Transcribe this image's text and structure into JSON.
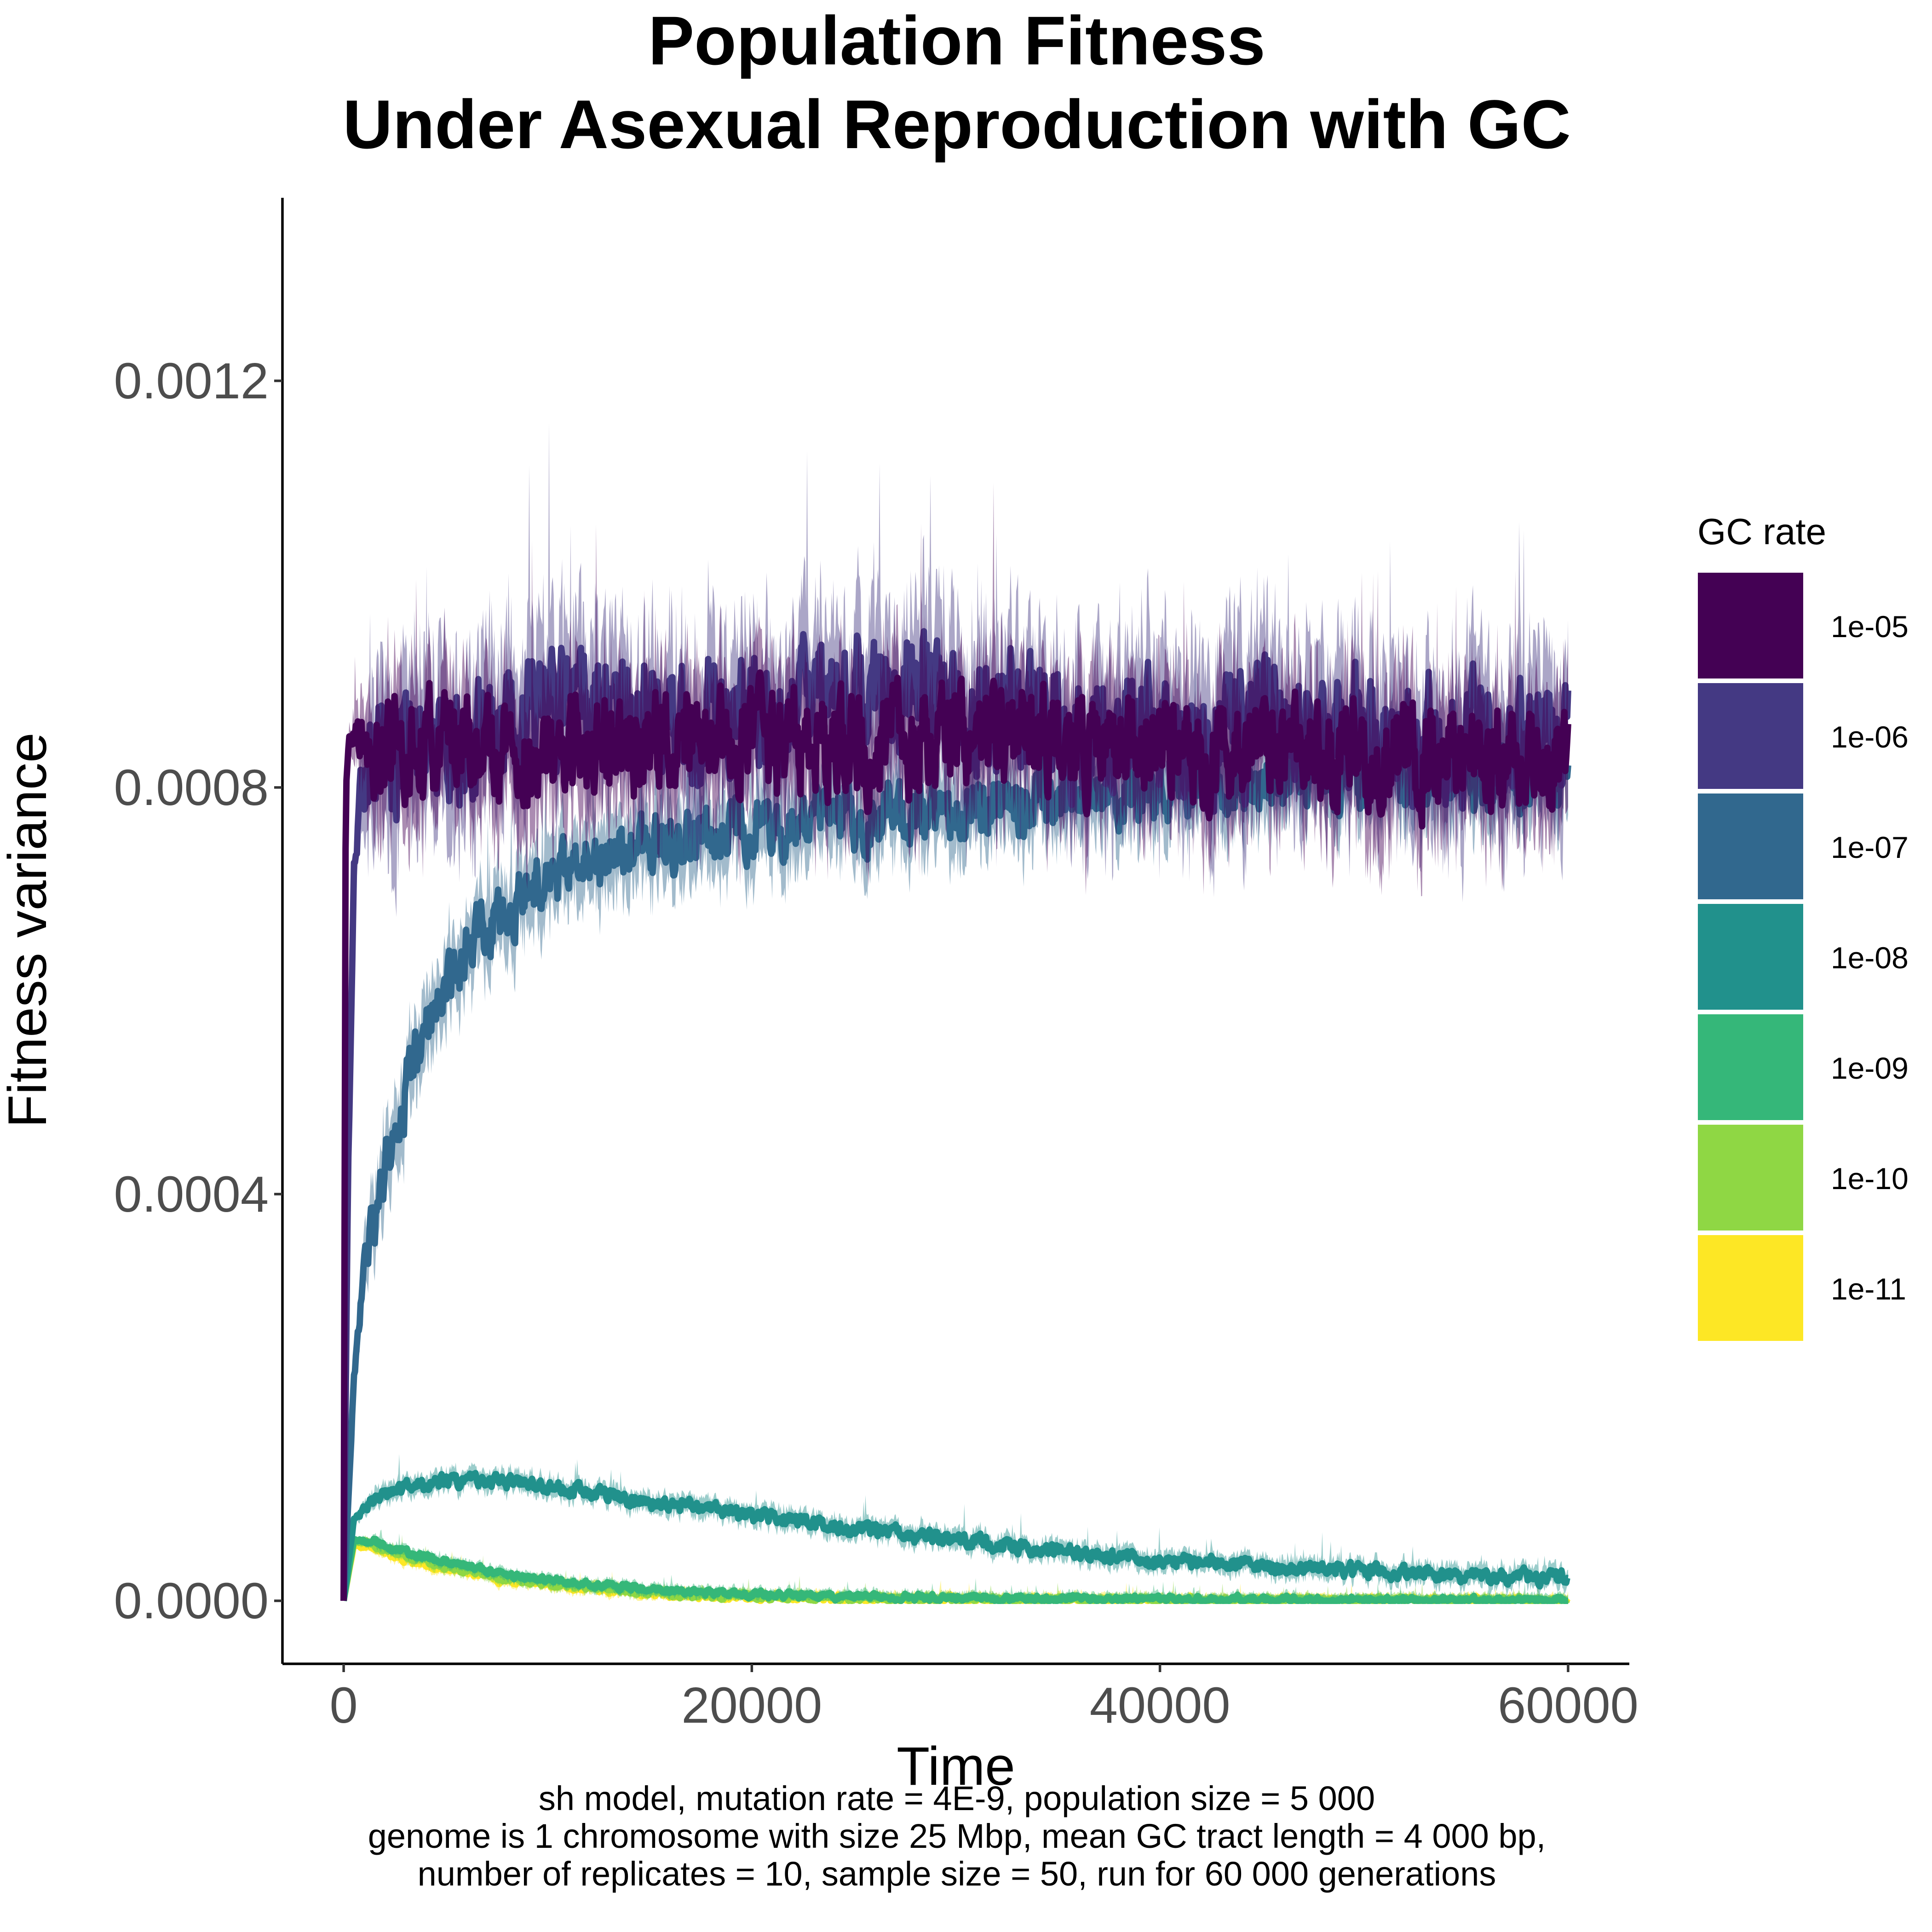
{
  "chart_data": {
    "type": "line",
    "title_lines": [
      "Population Fitness",
      "Under Asexual Reproduction with GC"
    ],
    "xlabel": "Time",
    "ylabel": "Fitness variance",
    "xlim": [
      -3000,
      63000
    ],
    "ylim": [
      -6.2e-05,
      0.00138
    ],
    "x_ticks": [
      0,
      20000,
      40000,
      60000
    ],
    "x_tick_labels": [
      "0",
      "20000",
      "40000",
      "60000"
    ],
    "y_ticks": [
      0,
      0.0004,
      0.0008,
      0.0012
    ],
    "y_tick_labels": [
      "0.0000",
      "0.0004",
      "0.0008",
      "0.0012"
    ],
    "grid": false,
    "legend": {
      "title": "GC rate",
      "position": "right"
    },
    "caption_lines": [
      "sh model, mutation rate = 4E-9, population size = 5 000",
      "genome is 1 chromosome with size 25 Mbp, mean GC tract length = 4 000 bp,",
      "number of replicates = 10, sample size = 50, run for 60 000 generations"
    ],
    "series": [
      {
        "name": "1e-05",
        "color": "#440154",
        "x": [
          0,
          100,
          300,
          500,
          1000,
          5000,
          10000,
          20000,
          30000,
          40000,
          50000,
          60000
        ],
        "y": [
          0,
          0.0008,
          0.00085,
          0.00085,
          0.00085,
          0.00084,
          0.00084,
          0.00084,
          0.00085,
          0.00084,
          0.00083,
          0.00083
        ],
        "band": 6e-05
      },
      {
        "name": "1e-06",
        "color": "#443983",
        "x": [
          0,
          200,
          500,
          800,
          1500,
          3000,
          5000,
          10000,
          20000,
          27000,
          30000,
          40000,
          50000,
          60000
        ],
        "y": [
          0,
          0.0004,
          0.00072,
          0.0008,
          0.00083,
          0.00084,
          0.00085,
          0.00087,
          0.00087,
          0.0009,
          0.00087,
          0.00086,
          0.00085,
          0.00084
        ],
        "band": 7e-05
      },
      {
        "name": "1e-07",
        "color": "#31688e",
        "x": [
          0,
          500,
          1000,
          2000,
          3000,
          4000,
          5000,
          6000,
          8000,
          10000,
          15000,
          20000,
          30000,
          40000,
          50000,
          60000
        ],
        "y": [
          0,
          0.00022,
          0.00032,
          0.00043,
          0.0005,
          0.00056,
          0.0006,
          0.00064,
          0.00068,
          0.00071,
          0.00074,
          0.00076,
          0.00078,
          0.0008,
          0.00081,
          0.00081
        ],
        "band": 3.5e-05
      },
      {
        "name": "1e-08",
        "color": "#21918c",
        "x": [
          0,
          500,
          1500,
          3000,
          5000,
          7000,
          10000,
          15000,
          20000,
          25000,
          30000,
          35000,
          40000,
          45000,
          50000,
          55000,
          60000
        ],
        "y": [
          0,
          8e-05,
          0.0001,
          0.000112,
          0.000118,
          0.000118,
          0.000113,
          9.8e-05,
          8.5e-05,
          7.2e-05,
          6e-05,
          4.9e-05,
          4e-05,
          3.4e-05,
          2.9e-05,
          2.5e-05,
          2.2e-05
        ],
        "band": 8e-06
      },
      {
        "name": "1e-09",
        "color": "#35b779",
        "x": [
          0,
          500,
          1500,
          3000,
          5000,
          8000,
          12000,
          16000,
          20000,
          25000,
          30000,
          40000,
          50000,
          60000
        ],
        "y": [
          0,
          6e-05,
          5.8e-05,
          4.8e-05,
          3.8e-05,
          2.6e-05,
          1.6e-05,
          1e-05,
          6e-06,
          4e-06,
          3e-06,
          1.5e-06,
          1e-06,
          5e-07
        ],
        "band": 4e-06
      },
      {
        "name": "1e-10",
        "color": "#8fd744",
        "x": [
          0,
          500,
          1500,
          3000,
          5000,
          8000,
          12000,
          16000,
          20000,
          25000,
          30000,
          40000,
          50000,
          60000
        ],
        "y": [
          0,
          5.8e-05,
          5.5e-05,
          4.4e-05,
          3.3e-05,
          2.2e-05,
          1.3e-05,
          7e-06,
          4e-06,
          2.5e-06,
          1.5e-06,
          8e-07,
          4e-07,
          2e-07
        ],
        "band": 4e-06
      },
      {
        "name": "1e-11",
        "color": "#fde725",
        "x": [
          0,
          500,
          1500,
          3000,
          5000,
          8000,
          12000,
          16000,
          20000,
          25000,
          30000,
          40000,
          50000,
          60000
        ],
        "y": [
          0,
          5.5e-05,
          5.2e-05,
          4.1e-05,
          3.1e-05,
          2e-05,
          1.2e-05,
          6e-06,
          3.5e-06,
          2e-06,
          1.2e-06,
          6e-07,
          3e-07,
          1e-07
        ],
        "band": 4e-06
      }
    ]
  }
}
